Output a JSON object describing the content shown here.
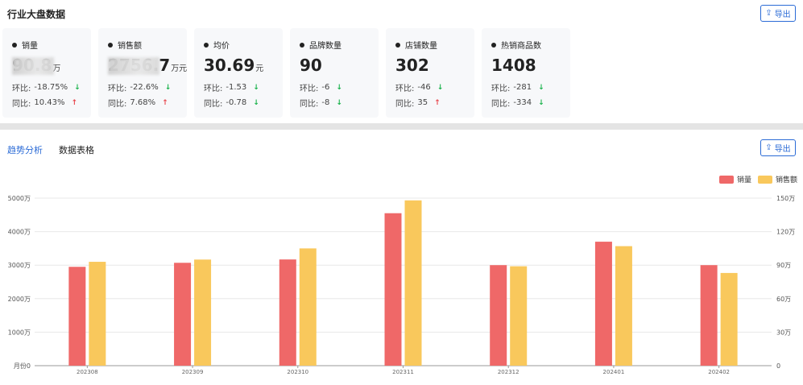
{
  "header": {
    "title": "行业大盘数据",
    "export_label": "导出"
  },
  "cards": [
    {
      "title": "销量",
      "value": "90.8",
      "unit": "万",
      "hb_label": "环比:",
      "hb_value": "-18.75%",
      "hb_dir": "down",
      "tb_label": "同比:",
      "tb_value": "10.43%",
      "tb_dir": "up"
    },
    {
      "title": "销售额",
      "value": "2756.7",
      "unit": "万元",
      "hb_label": "环比:",
      "hb_value": "-22.6%",
      "hb_dir": "down",
      "tb_label": "同比:",
      "tb_value": "7.68%",
      "tb_dir": "up"
    },
    {
      "title": "均价",
      "value": "30.69",
      "unit": "元",
      "hb_label": "环比:",
      "hb_value": "-1.53",
      "hb_dir": "down",
      "tb_label": "同比:",
      "tb_value": "-0.78",
      "tb_dir": "down"
    },
    {
      "title": "品牌数量",
      "value": "90",
      "unit": "",
      "hb_label": "环比:",
      "hb_value": "-6",
      "hb_dir": "down",
      "tb_label": "同比:",
      "tb_value": "-8",
      "tb_dir": "down"
    },
    {
      "title": "店铺数量",
      "value": "302",
      "unit": "",
      "hb_label": "环比:",
      "hb_value": "-46",
      "hb_dir": "down",
      "tb_label": "同比:",
      "tb_value": "35",
      "tb_dir": "up"
    },
    {
      "title": "热销商品数",
      "value": "1408",
      "unit": "",
      "hb_label": "环比:",
      "hb_value": "-281",
      "hb_dir": "down",
      "tb_label": "同比:",
      "tb_value": "-334",
      "tb_dir": "down"
    }
  ],
  "tabs": [
    {
      "label": "趋势分析",
      "active": true
    },
    {
      "label": "数据表格",
      "active": false
    }
  ],
  "colors": {
    "accent": "#2b6bd6",
    "down": "#19b24b",
    "up": "#e8444a"
  },
  "icons": {
    "export": "upload-icon",
    "down": "arrow-down-icon",
    "up": "arrow-up-icon"
  },
  "chart_data": {
    "type": "bar",
    "categories": [
      "202308",
      "202309",
      "202310",
      "202311",
      "202312",
      "202401",
      "202402"
    ],
    "series": [
      {
        "name": "销量",
        "axis": "left",
        "color": "#ef6868",
        "values": [
          2950,
          3070,
          3170,
          4550,
          3000,
          3700,
          3000
        ]
      },
      {
        "name": "销售额",
        "axis": "right",
        "color": "#f9c85c",
        "values": [
          93,
          95,
          105,
          148,
          89,
          107,
          83
        ]
      }
    ],
    "y_left": {
      "ticks": [
        "月份0",
        "1000万",
        "2000万",
        "3000万",
        "4000万",
        "5000万"
      ],
      "range": [
        0,
        5000
      ]
    },
    "y_right": {
      "ticks": [
        "0",
        "30万",
        "60万",
        "90万",
        "120万",
        "150万"
      ],
      "range": [
        0,
        150
      ]
    },
    "grid": true,
    "legend": "top-right"
  }
}
